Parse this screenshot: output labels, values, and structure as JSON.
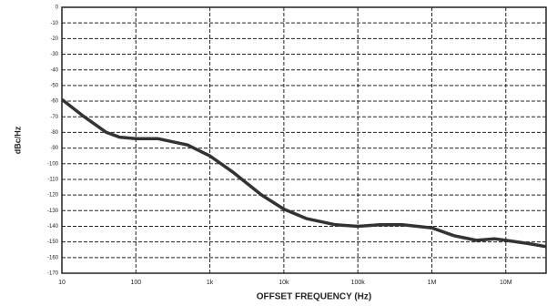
{
  "chart_data": {
    "type": "line",
    "y_label": "dBc/Hz",
    "x_label": "OFFSET FREQUENCY (Hz)",
    "x_scale": "log",
    "grid": true,
    "xlim": [
      10,
      35000000
    ],
    "ylim": [
      -170,
      0
    ],
    "xticks": [
      10,
      100,
      {
        "value": 1000,
        "label": "1k"
      },
      {
        "value": 10000,
        "label": "10k"
      },
      {
        "value": 100000,
        "label": "100k"
      },
      {
        "value": 1000000,
        "label": "1M"
      },
      {
        "value": 10000000,
        "label": "10M"
      }
    ],
    "yticks": [
      0,
      -10,
      -20,
      -30,
      -40,
      -50,
      -60,
      -70,
      -80,
      -90,
      -100,
      -110,
      -120,
      -130,
      -140,
      -150,
      -160,
      -170
    ],
    "series": [
      {
        "color": "#333333",
        "x": [
          10,
          20,
          40,
          60,
          100,
          200,
          500,
          1000,
          2000,
          5000,
          10000,
          20000,
          50000,
          100000,
          200000,
          400000,
          1000000,
          2000000,
          4000000,
          7000000,
          10000000,
          20000000,
          35000000
        ],
        "values": [
          -59,
          -70,
          -80,
          -83,
          -84,
          -84,
          -88,
          -95,
          -105,
          -120,
          -129,
          -135,
          -139,
          -140,
          -139,
          -139,
          -141,
          -146,
          -149,
          -148,
          -149,
          -151,
          -153
        ]
      }
    ]
  }
}
